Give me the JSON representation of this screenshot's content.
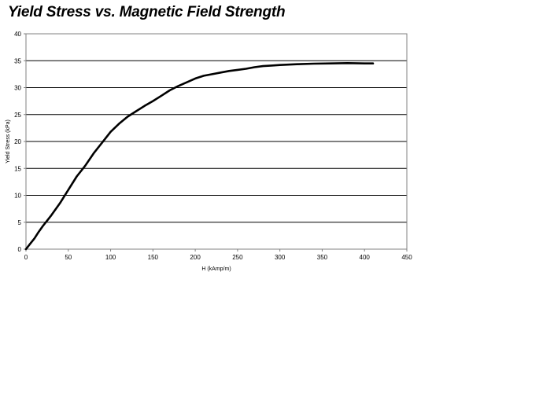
{
  "chart_data": {
    "type": "line",
    "title": "Yield Stress vs. Magnetic Field Strength",
    "xlabel": "H (kAmp/m)",
    "ylabel": "Yield Stress (kPa)",
    "xlim": [
      0,
      450
    ],
    "ylim": [
      0,
      40
    ],
    "xticks": [
      0,
      50,
      100,
      150,
      200,
      250,
      300,
      350,
      400,
      450
    ],
    "yticks": [
      0,
      5,
      10,
      15,
      20,
      25,
      30,
      35,
      40
    ],
    "grid": "horizontal",
    "legend": "none",
    "line_color": "#000000",
    "series": [
      {
        "x": [
          0,
          5,
          10,
          15,
          20,
          25,
          30,
          40,
          50,
          60,
          70,
          80,
          90,
          100,
          110,
          120,
          130,
          140,
          150,
          160,
          170,
          180,
          190,
          200,
          210,
          220,
          230,
          240,
          250,
          260,
          270,
          280,
          290,
          300,
          320,
          340,
          360,
          380,
          400,
          410
        ],
        "y": [
          0,
          1.0,
          2.0,
          3.2,
          4.3,
          5.3,
          6.3,
          8.5,
          11.0,
          13.5,
          15.5,
          17.8,
          19.8,
          21.8,
          23.3,
          24.6,
          25.6,
          26.6,
          27.5,
          28.5,
          29.5,
          30.3,
          31.0,
          31.7,
          32.2,
          32.5,
          32.8,
          33.1,
          33.3,
          33.5,
          33.8,
          34.0,
          34.1,
          34.2,
          34.35,
          34.45,
          34.5,
          34.55,
          34.5,
          34.5
        ]
      }
    ]
  }
}
